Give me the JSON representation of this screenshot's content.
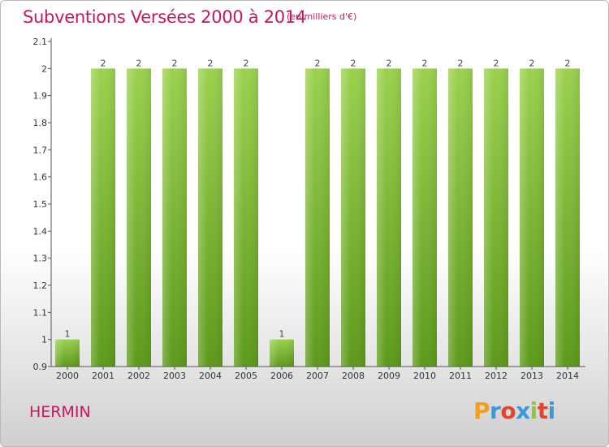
{
  "header": {
    "title": "Subventions Versées 2000 à 2014",
    "unit": "(en milliers d'€)"
  },
  "footer": {
    "commune": "HERMIN",
    "logo_letters": [
      "P",
      "r",
      "o",
      "x",
      "i",
      "t",
      "i"
    ],
    "logo_colors": [
      "#f0a020",
      "#3a9ad9",
      "#e0462f",
      "#3a9ad9",
      "#8cc63f",
      "#e0462f",
      "#3a9ad9"
    ]
  },
  "chart_data": {
    "type": "bar",
    "title": "Subventions Versées 2000 à 2014",
    "subtitle": "(en milliers d'€)",
    "categories": [
      "2000",
      "2001",
      "2002",
      "2003",
      "2004",
      "2005",
      "2006",
      "2007",
      "2008",
      "2009",
      "2010",
      "2011",
      "2012",
      "2013",
      "2014"
    ],
    "values": [
      1,
      2,
      2,
      2,
      2,
      2,
      1,
      2,
      2,
      2,
      2,
      2,
      2,
      2,
      2
    ],
    "data_labels": [
      "1",
      "2",
      "2",
      "2",
      "2",
      "2",
      "1",
      "2",
      "2",
      "2",
      "2",
      "2",
      "2",
      "2",
      "2"
    ],
    "ylim": [
      0.9,
      2.1
    ],
    "yticks": [
      "0.9",
      "1",
      "1.1",
      "1.2",
      "1.3",
      "1.4",
      "1.5",
      "1.6",
      "1.7",
      "1.8",
      "1.9",
      "2",
      "2.1"
    ],
    "grid": false,
    "bar_color": "#7cbd2e",
    "xlabel": "",
    "ylabel": ""
  }
}
